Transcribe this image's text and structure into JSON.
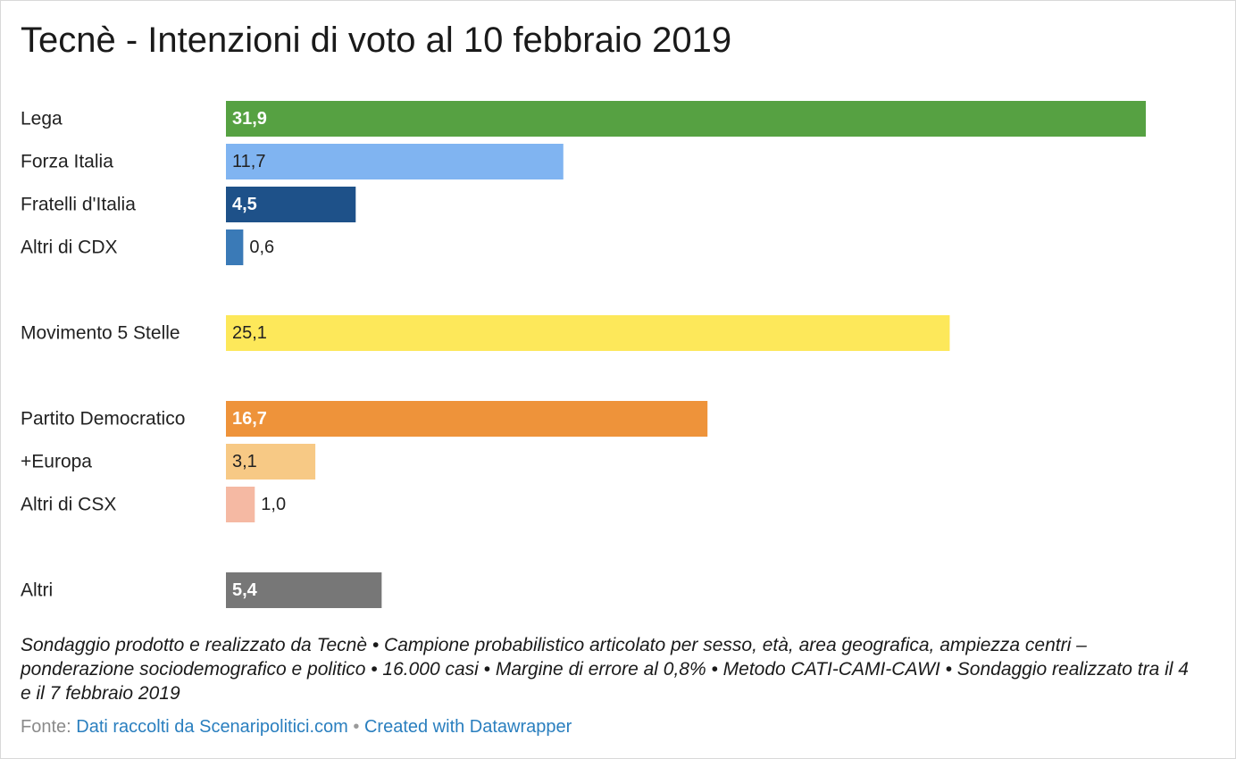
{
  "title": "Tecnè - Intenzioni di voto al 10 febbraio 2019",
  "notes": "Sondaggio prodotto e realizzato da Tecnè • Campione probabilistico articolato per sesso, età, area geografica, ampiezza centri – ponderazione sociodemografico e politico • 16.000 casi • Margine di errore al 0,8% • Metodo CATI-CAMI-CAWI • Sondaggio realizzato tra il 4 e il 7 febbraio 2019",
  "source": {
    "prefix": "Fonte:",
    "link": "Dati raccolti da Scenaripolitici.com",
    "separator": "•",
    "credit": "Created with Datawrapper"
  },
  "chart_data": {
    "type": "bar",
    "orientation": "horizontal",
    "xlim": [
      0,
      31.9
    ],
    "grid": false,
    "categories": [
      "Lega",
      "Forza Italia",
      "Fratelli d'Italia",
      "Altri di CDX",
      "Movimento 5 Stelle",
      "Partito Democratico",
      "+Europa",
      "Altri di CSX",
      "Altri"
    ],
    "values": [
      31.9,
      11.7,
      4.5,
      0.6,
      25.1,
      16.7,
      3.1,
      1.0,
      5.4
    ],
    "value_labels": [
      "31,9",
      "11,7",
      "4,5",
      "0,6",
      "25,1",
      "16,7",
      "3,1",
      "1,0",
      "5,4"
    ],
    "colors": [
      "#56a142",
      "#80b4f1",
      "#1e5189",
      "#3a7ab7",
      "#fde85a",
      "#ee933a",
      "#f7c985",
      "#f5b9a3",
      "#777777"
    ],
    "label_colors": [
      "#ffffff",
      "#222222",
      "#ffffff",
      "#222222",
      "#222222",
      "#ffffff",
      "#222222",
      "#222222",
      "#ffffff"
    ],
    "label_weights": [
      "bold",
      "normal",
      "bold",
      "normal",
      "normal",
      "bold",
      "normal",
      "normal",
      "bold"
    ],
    "groups": [
      [
        0,
        1,
        2,
        3
      ],
      [
        4
      ],
      [
        5,
        6,
        7
      ],
      [
        8
      ]
    ]
  }
}
